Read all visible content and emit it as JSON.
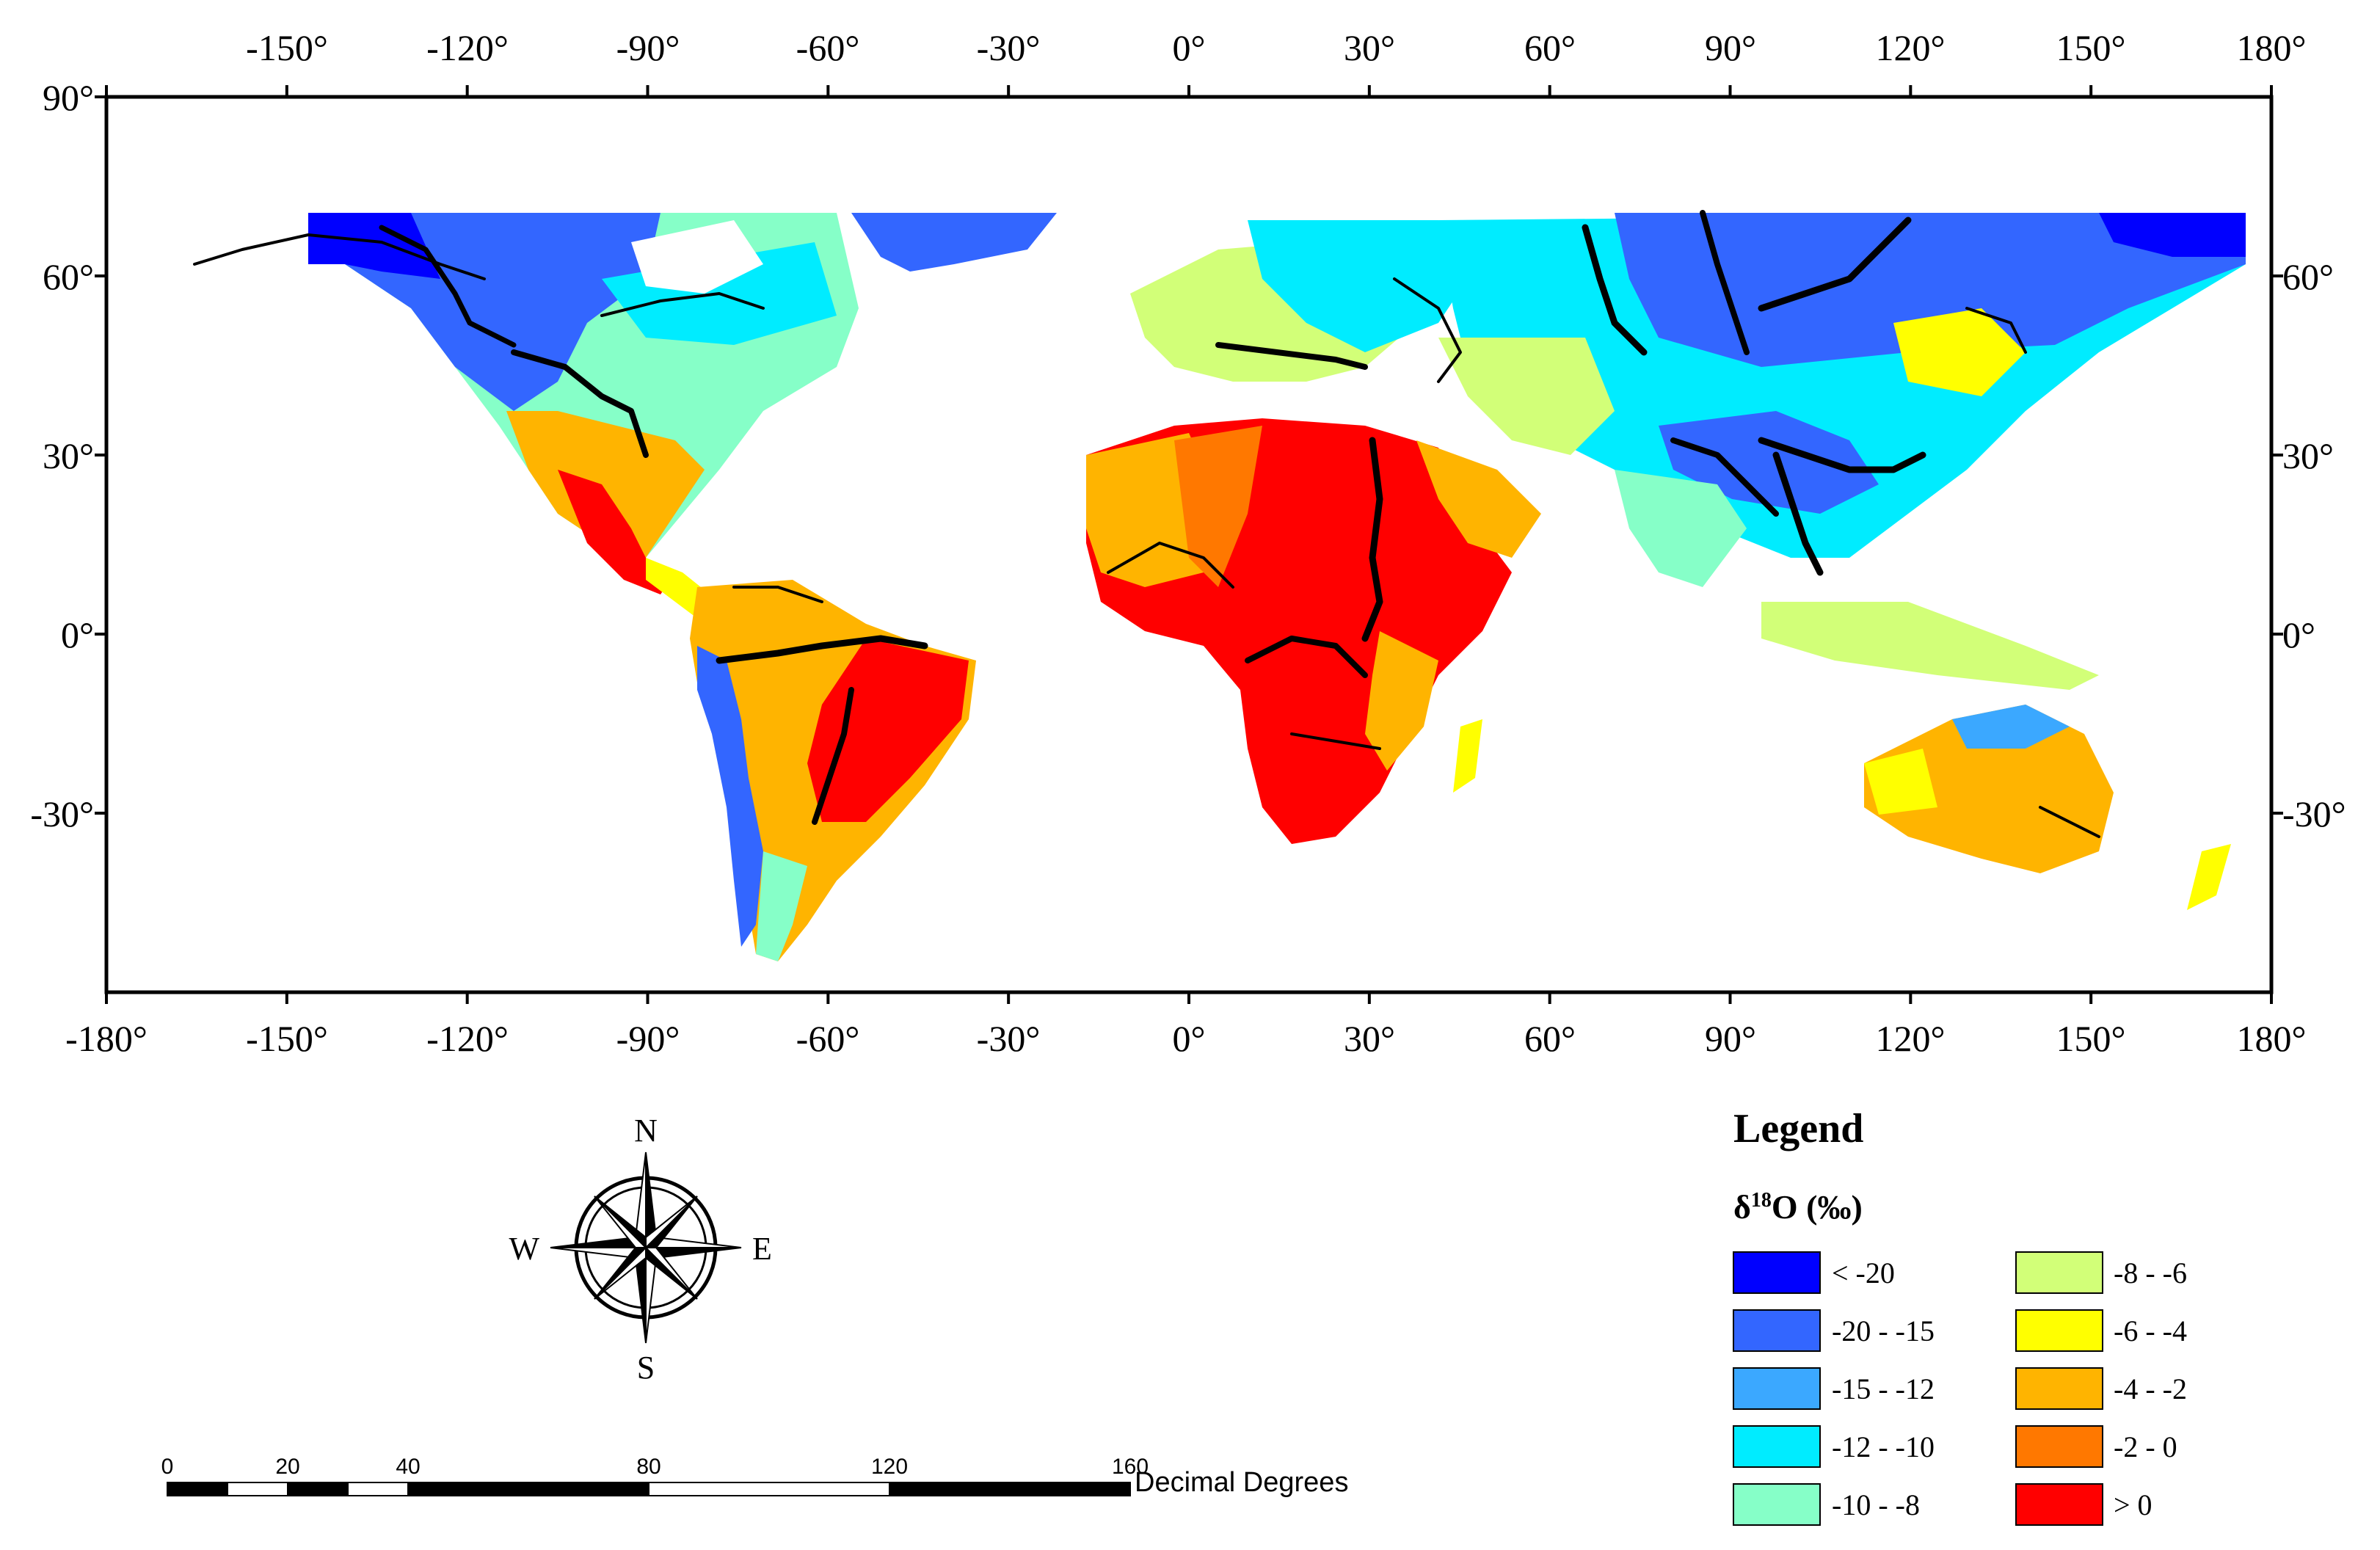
{
  "map": {
    "lon_ticks": [
      "-180°",
      "-150°",
      "-120°",
      "-90°",
      "-60°",
      "-30°",
      "0°",
      "30°",
      "60°",
      "90°",
      "120°",
      "150°",
      "180°"
    ],
    "lat_ticks_left": [
      "90°",
      "60°",
      "30°",
      "0°",
      "-30°"
    ],
    "lat_ticks_right": [
      "60°",
      "30°",
      "0°",
      "-30°"
    ],
    "lon_values": [
      -180,
      -150,
      -120,
      -90,
      -60,
      -30,
      0,
      30,
      60,
      90,
      120,
      150,
      180
    ],
    "lat_values_left": [
      90,
      60,
      30,
      0,
      -30
    ],
    "lat_values_right": [
      60,
      30,
      0,
      -30
    ],
    "extent": {
      "lon": [
        -180,
        180
      ],
      "lat": [
        -60,
        90
      ]
    }
  },
  "legend": {
    "title": "Legend",
    "variable_prefix": "δ",
    "variable_superscript": "18",
    "variable_suffix": "O (‰)",
    "classes": [
      {
        "label": "< -20",
        "color": "#0000ff"
      },
      {
        "label": "-20 - -15",
        "color": "#3366ff"
      },
      {
        "label": "-15 - -12",
        "color": "#3ba8ff"
      },
      {
        "label": "-12 - -10",
        "color": "#00ecff"
      },
      {
        "label": "-10 - -8",
        "color": "#86ffc8"
      },
      {
        "label": "-8 - -6",
        "color": "#d2ff78"
      },
      {
        "label": "-6 - -4",
        "color": "#ffff00"
      },
      {
        "label": "-4 - -2",
        "color": "#ffb400"
      },
      {
        "label": "-2 - 0",
        "color": "#ff7800"
      },
      {
        "label": "> 0",
        "color": "#ff0000"
      }
    ]
  },
  "compass": {
    "north": "N",
    "south": "S",
    "east": "E",
    "west": "W"
  },
  "scale_bar": {
    "labels": [
      "0",
      "20",
      "40",
      "80",
      "120",
      "160"
    ],
    "values": [
      0,
      20,
      40,
      80,
      120,
      160
    ],
    "unit": "Decimal Degrees"
  },
  "colors": {
    "rivers": "#000000",
    "frame": "#000000",
    "background": "#ffffff"
  }
}
